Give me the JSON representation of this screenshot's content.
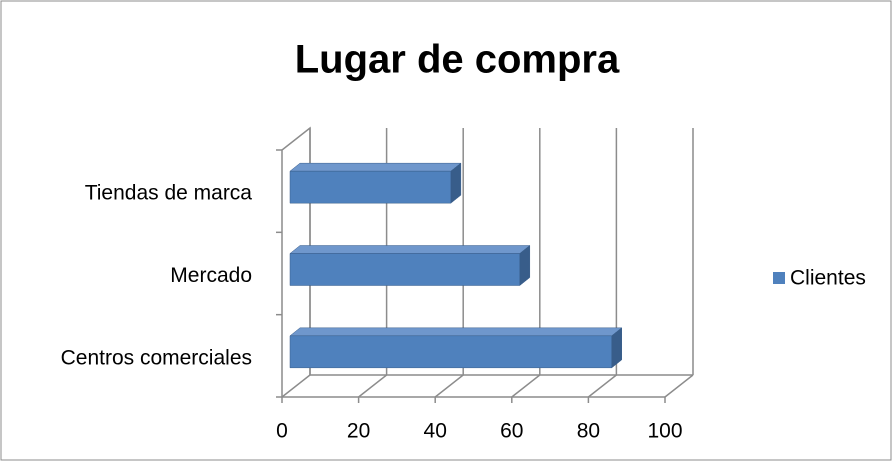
{
  "chart_data": {
    "type": "bar3d",
    "orientation": "horizontal",
    "title": "Lugar de compra",
    "categories": [
      "Centros comerciales",
      "Mercado",
      "Tiendas de marca"
    ],
    "series": [
      {
        "name": "Clientes",
        "color": "#4f81bd",
        "values": [
          84,
          60,
          42
        ]
      }
    ],
    "xlim": [
      0,
      100
    ],
    "xticks": [
      0,
      20,
      40,
      60,
      80,
      100
    ],
    "grid": true,
    "legend": "right"
  }
}
